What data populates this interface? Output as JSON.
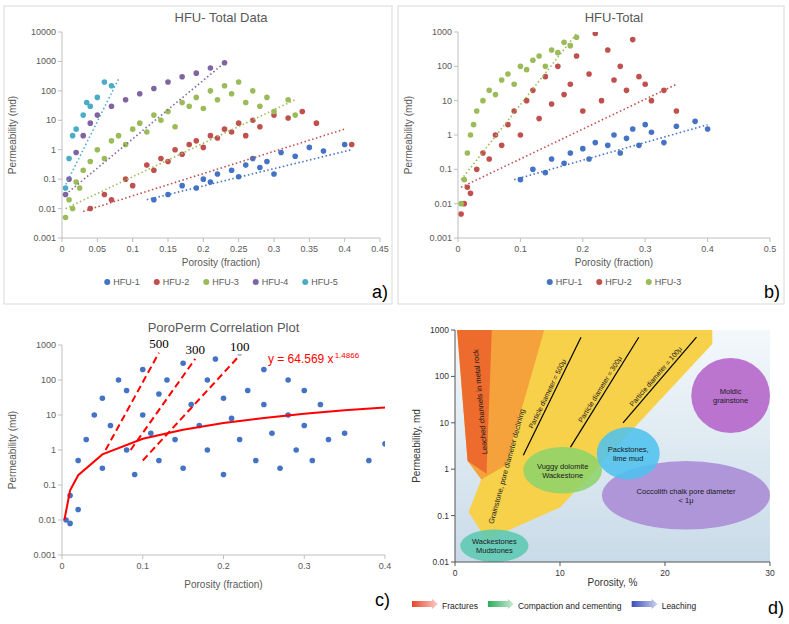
{
  "chart_data": [
    {
      "type": "scatter",
      "panel": "a)",
      "title": "HFU- Total Data",
      "x_label": "Porosity (fraction)",
      "y_label": "Permeability (md)",
      "xlim": [
        0,
        0.45
      ],
      "xticks": [
        0,
        0.05,
        0.1,
        0.15,
        0.2,
        0.25,
        0.3,
        0.35,
        0.4,
        0.45
      ],
      "ylim": [
        0.001,
        10000
      ],
      "yticks": [
        0.001,
        0.01,
        0.1,
        1,
        10,
        100,
        1000,
        10000
      ],
      "log": "y",
      "grid": false,
      "legend": "bottom",
      "series": [
        {
          "name": "HFU-1",
          "color": "#4472C4",
          "marker": "circle",
          "x": [
            0.13,
            0.15,
            0.17,
            0.19,
            0.2,
            0.21,
            0.22,
            0.24,
            0.25,
            0.26,
            0.27,
            0.28,
            0.29,
            0.3,
            0.31,
            0.33,
            0.35,
            0.37,
            0.4
          ],
          "values": [
            0.02,
            0.03,
            0.06,
            0.05,
            0.1,
            0.08,
            0.15,
            0.2,
            0.12,
            0.3,
            0.5,
            0.25,
            0.4,
            0.15,
            0.8,
            0.6,
            1.2,
            0.9,
            1.5
          ],
          "trend": {
            "line_style": "dotted",
            "x": [
              0.12,
              0.41
            ],
            "values": [
              0.02,
              1
            ]
          }
        },
        {
          "name": "HFU-2",
          "color": "#C0504D",
          "marker": "circle",
          "x": [
            0.04,
            0.06,
            0.07,
            0.09,
            0.1,
            0.12,
            0.13,
            0.14,
            0.15,
            0.16,
            0.17,
            0.18,
            0.19,
            0.2,
            0.21,
            0.22,
            0.23,
            0.24,
            0.25,
            0.26,
            0.27,
            0.28,
            0.3,
            0.32,
            0.34,
            0.36,
            0.41
          ],
          "values": [
            0.01,
            0.03,
            0.02,
            0.1,
            0.06,
            0.3,
            0.2,
            0.5,
            0.4,
            1,
            0.7,
            1.5,
            2,
            1.2,
            3,
            2.5,
            5,
            4,
            8,
            3,
            10,
            6,
            15,
            12,
            20,
            8,
            1.5
          ],
          "trend": {
            "line_style": "dotted",
            "x": [
              0.03,
              0.4
            ],
            "values": [
              0.008,
              5
            ]
          }
        },
        {
          "name": "HFU-3",
          "color": "#9BBB59",
          "marker": "circle",
          "x": [
            0.005,
            0.01,
            0.015,
            0.02,
            0.025,
            0.03,
            0.04,
            0.05,
            0.06,
            0.07,
            0.08,
            0.09,
            0.1,
            0.11,
            0.12,
            0.13,
            0.14,
            0.15,
            0.16,
            0.17,
            0.18,
            0.19,
            0.2,
            0.21,
            0.22,
            0.23,
            0.24,
            0.25,
            0.26,
            0.27,
            0.28,
            0.29,
            0.3,
            0.32,
            0.33
          ],
          "values": [
            0.005,
            0.02,
            0.01,
            0.08,
            0.05,
            0.2,
            0.4,
            1,
            0.5,
            2,
            3,
            1.5,
            5,
            8,
            4,
            15,
            10,
            20,
            6,
            40,
            30,
            60,
            25,
            100,
            50,
            150,
            80,
            200,
            40,
            100,
            30,
            60,
            20,
            50,
            15
          ],
          "trend": {
            "line_style": "dotted",
            "x": [
              0.005,
              0.33
            ],
            "values": [
              0.01,
              50
            ]
          }
        },
        {
          "name": "HFU-4",
          "color": "#8064A2",
          "marker": "circle",
          "x": [
            0.005,
            0.01,
            0.02,
            0.03,
            0.04,
            0.05,
            0.07,
            0.09,
            0.11,
            0.13,
            0.15,
            0.17,
            0.19,
            0.21,
            0.23
          ],
          "values": [
            0.03,
            0.1,
            0.8,
            3,
            8,
            15,
            30,
            50,
            80,
            120,
            200,
            300,
            400,
            600,
            900
          ],
          "trend": {
            "line_style": "dotted",
            "x": [
              0.005,
              0.23
            ],
            "values": [
              0.03,
              900
            ]
          }
        },
        {
          "name": "HFU-5",
          "color": "#4BACC6",
          "marker": "circle",
          "x": [
            0.005,
            0.01,
            0.015,
            0.02,
            0.03,
            0.035,
            0.04,
            0.05,
            0.06,
            0.07
          ],
          "values": [
            0.05,
            0.5,
            3,
            5,
            15,
            40,
            30,
            60,
            200,
            150
          ],
          "trend": {
            "line_style": "dotted",
            "x": [
              0.003,
              0.08
            ],
            "values": [
              0.05,
              250
            ]
          }
        }
      ]
    },
    {
      "type": "scatter",
      "panel": "b)",
      "title": "HFU-Total",
      "x_label": "Porosity (fraction)",
      "y_label": "Permeability (md)",
      "xlim": [
        0,
        0.5
      ],
      "xticks": [
        0,
        0.1,
        0.2,
        0.3,
        0.4,
        0.5
      ],
      "ylim": [
        0.001,
        1000
      ],
      "yticks": [
        0.001,
        0.01,
        0.1,
        1,
        10,
        100,
        1000
      ],
      "log": "y",
      "grid": false,
      "legend": "bottom",
      "series": [
        {
          "name": "HFU-1",
          "color": "#4472C4",
          "marker": "circle",
          "x": [
            0.1,
            0.12,
            0.14,
            0.15,
            0.17,
            0.18,
            0.2,
            0.21,
            0.22,
            0.24,
            0.25,
            0.26,
            0.27,
            0.28,
            0.29,
            0.3,
            0.31,
            0.33,
            0.35,
            0.38,
            0.4
          ],
          "values": [
            0.05,
            0.1,
            0.08,
            0.2,
            0.15,
            0.3,
            0.4,
            0.2,
            0.6,
            0.5,
            1,
            0.3,
            0.8,
            1.5,
            0.5,
            2,
            1.2,
            0.6,
            1.8,
            2.5,
            1.5
          ],
          "trend": {
            "line_style": "dotted",
            "x": [
              0.09,
              0.4
            ],
            "values": [
              0.05,
              2
            ]
          }
        },
        {
          "name": "HFU-2",
          "color": "#C0504D",
          "marker": "circle",
          "x": [
            0.005,
            0.01,
            0.015,
            0.02,
            0.03,
            0.04,
            0.05,
            0.06,
            0.07,
            0.08,
            0.09,
            0.1,
            0.11,
            0.12,
            0.13,
            0.14,
            0.15,
            0.16,
            0.17,
            0.18,
            0.19,
            0.2,
            0.21,
            0.22,
            0.23,
            0.24,
            0.25,
            0.26,
            0.27,
            0.28,
            0.29,
            0.3,
            0.31,
            0.33,
            0.35
          ],
          "values": [
            0.005,
            0.01,
            0.03,
            0.02,
            0.1,
            0.3,
            0.2,
            1,
            0.5,
            2,
            5,
            1,
            10,
            20,
            3,
            50,
            8,
            100,
            15,
            30,
            200,
            5,
            60,
            900,
            10,
            300,
            40,
            100,
            20,
            600,
            50,
            30,
            10,
            20,
            5
          ],
          "trend": {
            "line_style": "dotted",
            "x": [
              0.005,
              0.35
            ],
            "values": [
              0.03,
              30
            ]
          }
        },
        {
          "name": "HFU-3",
          "color": "#9BBB59",
          "marker": "circle",
          "x": [
            0.005,
            0.01,
            0.015,
            0.02,
            0.025,
            0.03,
            0.04,
            0.05,
            0.06,
            0.07,
            0.08,
            0.09,
            0.1,
            0.11,
            0.12,
            0.13,
            0.14,
            0.15,
            0.16,
            0.17,
            0.18,
            0.19
          ],
          "values": [
            0.01,
            0.05,
            0.3,
            1,
            2,
            5,
            10,
            20,
            15,
            40,
            60,
            30,
            100,
            80,
            150,
            200,
            100,
            300,
            250,
            500,
            400,
            700
          ],
          "trend": {
            "line_style": "dotted",
            "x": [
              0.005,
              0.19
            ],
            "values": [
              0.05,
              900
            ]
          }
        }
      ]
    },
    {
      "type": "scatter",
      "panel": "c)",
      "title": "PoroPerm Correlation Plot",
      "x_label": "Porosity (fraction)",
      "y_label": "Permeability (md)",
      "xlim": [
        0,
        0.4
      ],
      "xticks": [
        0,
        0.1,
        0.2,
        0.3,
        0.4
      ],
      "ylim": [
        0.001,
        1000
      ],
      "yticks": [
        0.001,
        0.01,
        0.1,
        1,
        10,
        100,
        1000
      ],
      "log": "y",
      "grid": false,
      "series": [
        {
          "type": "scatter",
          "color": "#4472C4",
          "marker": "circle",
          "x": [
            0.005,
            0.01,
            0.01,
            0.02,
            0.02,
            0.03,
            0.04,
            0.05,
            0.05,
            0.06,
            0.07,
            0.08,
            0.08,
            0.09,
            0.1,
            0.1,
            0.11,
            0.12,
            0.12,
            0.13,
            0.14,
            0.15,
            0.15,
            0.16,
            0.17,
            0.18,
            0.18,
            0.19,
            0.2,
            0.2,
            0.21,
            0.22,
            0.22,
            0.23,
            0.24,
            0.25,
            0.25,
            0.26,
            0.27,
            0.28,
            0.28,
            0.29,
            0.3,
            0.3,
            0.31,
            0.32,
            0.33,
            0.35,
            0.38,
            0.4
          ],
          "values": [
            0.01,
            0.05,
            0.008,
            0.5,
            0.02,
            2,
            10,
            0.3,
            30,
            5,
            100,
            1,
            50,
            0.2,
            10,
            200,
            3,
            0.5,
            40,
            100,
            2,
            0.3,
            300,
            20,
            5,
            1,
            100,
            400,
            0.2,
            30,
            8,
            2,
            600,
            50,
            0.5,
            20,
            200,
            3,
            0.3,
            10,
            100,
            1,
            5,
            50,
            0.5,
            20,
            2,
            3,
            0.5,
            1.5
          ]
        },
        {
          "type": "line",
          "color": "#FF0000",
          "line_style": "solid",
          "x": [
            0.003,
            0.01,
            0.02,
            0.05,
            0.1,
            0.15,
            0.2,
            0.25,
            0.3,
            0.35,
            0.4
          ],
          "values": [
            0.01,
            0.07,
            0.19,
            0.75,
            2.1,
            3.8,
            5.9,
            8.2,
            10.8,
            13.6,
            16.5
          ]
        },
        {
          "name": "500",
          "type": "line",
          "color": "#FF0000",
          "line_style": "dashed",
          "x": [
            0.054,
            0.12
          ],
          "values": [
            1,
            600
          ]
        },
        {
          "name": "300",
          "type": "line",
          "color": "#FF0000",
          "line_style": "dashed",
          "x": [
            0.085,
            0.165
          ],
          "values": [
            1,
            400
          ]
        },
        {
          "name": "100",
          "type": "line",
          "color": "#FF0000",
          "line_style": "dashed",
          "x": [
            0.1,
            0.22
          ],
          "values": [
            0.5,
            500
          ]
        }
      ],
      "annotations": [
        {
          "text": "y = 64.569 x",
          "superscript": "1.4866",
          "color": "#FF0000",
          "x": 0.255,
          "y": 300
        }
      ]
    },
    {
      "type": "region",
      "panel": "d)",
      "x_label": "Porosity, %",
      "y_label": "Permeability, md",
      "xlim": [
        0,
        30
      ],
      "xticks": [
        0,
        10,
        20,
        30
      ],
      "ylim": [
        0.01,
        1000
      ],
      "yticks": [
        0.01,
        0.1,
        1,
        10,
        100,
        1000
      ],
      "log": "y",
      "grid": false,
      "legend": "bottom",
      "series": [
        {
          "name": "Grainstone, pore diameter declining",
          "type": "area",
          "color": "#F7D14A",
          "x": [
            8.5,
            24.5,
            24.5,
            10,
            3,
            1.3,
            2.5
          ],
          "values": [
            1000,
            1000,
            500,
            0.15,
            0.03,
            0.12,
            0.6
          ]
        },
        {
          "type": "area",
          "color": "#F5A23C",
          "x": [
            0.2,
            8.5,
            4.8,
            2.5,
            1.2
          ],
          "values": [
            1000,
            1000,
            1.2,
            0.6,
            1.5
          ]
        },
        {
          "name": "Leached channels in metal rock",
          "type": "area",
          "color": "#EC6B2D",
          "x": [
            1.8,
            3.5,
            3.0,
            1.2,
            0.2
          ],
          "values": [
            1000,
            1000,
            0.8,
            1.5,
            1000
          ]
        },
        {
          "name": "Coccolith chalk pore diameter < 1μ",
          "type": "ellipse",
          "color": "#A88BD6",
          "x": [
            14,
            30
          ],
          "values": [
            0.05,
            1.5
          ]
        },
        {
          "name": "Moldic grainstone",
          "type": "ellipse",
          "color": "#B463C9",
          "x": [
            22.5,
            30
          ],
          "values": [
            6,
            250
          ]
        },
        {
          "name": "Wackestones Mudstones",
          "type": "ellipse",
          "color": "#5CC8B2",
          "x": [
            0.5,
            7
          ],
          "values": [
            0.01,
            0.05
          ]
        },
        {
          "name": "Vuggy dolomite Wackestone",
          "type": "ellipse",
          "color": "#8ED36B",
          "x": [
            6.5,
            14
          ],
          "values": [
            0.3,
            3
          ]
        },
        {
          "name": "Packstones, lime mud",
          "type": "ellipse",
          "color": "#4EC1EE",
          "x": [
            13.5,
            19.5
          ],
          "values": [
            0.6,
            8
          ]
        },
        {
          "name": "Particle diameter = 500μ",
          "type": "line",
          "color": "#000000",
          "x": [
            6.5,
            12
          ],
          "values": [
            2,
            700
          ]
        },
        {
          "name": "Particle diameter = 300μ",
          "type": "line",
          "color": "#000000",
          "x": [
            11,
            17.5
          ],
          "values": [
            3,
            700
          ]
        },
        {
          "name": "Particle diameter = 100μ",
          "type": "line",
          "color": "#000000",
          "x": [
            16,
            23
          ],
          "values": [
            10,
            700
          ]
        }
      ],
      "legend_items": [
        {
          "name": "Fractures",
          "color": "#E8452C"
        },
        {
          "name": "Compaction and cementing",
          "color": "#2EAD5B"
        },
        {
          "name": "Leaching",
          "color": "#3A4FB8"
        }
      ]
    }
  ]
}
